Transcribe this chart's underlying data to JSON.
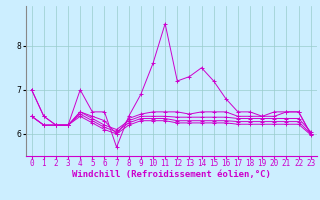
{
  "background_color": "#cceeff",
  "line_color": "#cc00cc",
  "xlabel": "Windchill (Refroidissement éolien,°C)",
  "xlabel_fontsize": 6.5,
  "tick_fontsize": 5.5,
  "ylim": [
    5.5,
    8.9
  ],
  "xlim": [
    -0.5,
    23.5
  ],
  "yticks": [
    6,
    7,
    8
  ],
  "xticks": [
    0,
    1,
    2,
    3,
    4,
    5,
    6,
    7,
    8,
    9,
    10,
    11,
    12,
    13,
    14,
    15,
    16,
    17,
    18,
    19,
    20,
    21,
    22,
    23
  ],
  "grid_color": "#99cccc",
  "series": [
    [
      7.0,
      6.4,
      6.2,
      6.2,
      7.0,
      6.5,
      6.5,
      5.7,
      6.4,
      6.9,
      7.6,
      8.5,
      7.2,
      7.3,
      7.5,
      7.2,
      6.8,
      6.5,
      6.5,
      6.4,
      6.5,
      6.5,
      6.5,
      6.0
    ],
    [
      7.0,
      6.4,
      6.2,
      6.2,
      6.5,
      6.4,
      6.3,
      6.0,
      6.35,
      6.45,
      6.5,
      6.5,
      6.5,
      6.45,
      6.5,
      6.5,
      6.5,
      6.4,
      6.4,
      6.4,
      6.4,
      6.5,
      6.5,
      6.0
    ],
    [
      6.4,
      6.2,
      6.2,
      6.2,
      6.5,
      6.35,
      6.2,
      6.1,
      6.3,
      6.4,
      6.4,
      6.4,
      6.38,
      6.38,
      6.38,
      6.38,
      6.38,
      6.35,
      6.35,
      6.35,
      6.35,
      6.35,
      6.35,
      6.05
    ],
    [
      6.4,
      6.2,
      6.2,
      6.2,
      6.45,
      6.3,
      6.15,
      6.05,
      6.25,
      6.35,
      6.35,
      6.35,
      6.3,
      6.3,
      6.3,
      6.3,
      6.3,
      6.28,
      6.28,
      6.28,
      6.28,
      6.28,
      6.28,
      6.0
    ],
    [
      6.4,
      6.2,
      6.2,
      6.2,
      6.4,
      6.25,
      6.1,
      6.0,
      6.2,
      6.3,
      6.3,
      6.3,
      6.25,
      6.25,
      6.25,
      6.25,
      6.25,
      6.22,
      6.22,
      6.22,
      6.22,
      6.22,
      6.22,
      5.98
    ]
  ],
  "marker": "+"
}
